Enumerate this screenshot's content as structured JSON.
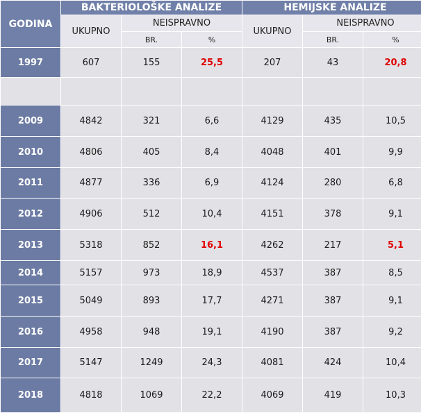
{
  "header": {
    "godina": "GODINA",
    "bakterioloske": "BAKTERIOLOŠKE ANALIZE",
    "hemijske": "HEMIJSKE ANALIZE",
    "ukupno_1": "UKUPNO",
    "neispravno_1": "NEISPRAVNO",
    "br_1": "BR.",
    "pct_1": "%",
    "ukupno_2": "UKUPNO",
    "neispravno_2": "NEISPRAVNO",
    "br_2": "BR.",
    "pct_2": "%"
  },
  "rows": [
    {
      "year": "1997",
      "b_ukupno": "607",
      "b_br": "155",
      "b_pct": "25,5",
      "h_ukupno": "207",
      "h_br": "43",
      "h_pct": "20,8",
      "highlight": true
    },
    {
      "year": "2009",
      "b_ukupno": "4842",
      "b_br": "321",
      "b_pct": "6,6",
      "h_ukupno": "4129",
      "h_br": "435",
      "h_pct": "10,5",
      "highlight": false
    },
    {
      "year": "2010",
      "b_ukupno": "4806",
      "b_br": "405",
      "b_pct": "8,4",
      "h_ukupno": "4048",
      "h_br": "401",
      "h_pct": "9,9",
      "highlight": false
    },
    {
      "year": "2011",
      "b_ukupno": "4877",
      "b_br": "336",
      "b_pct": "6,9",
      "h_ukupno": "4124",
      "h_br": "280",
      "h_pct": "6,8",
      "highlight": false
    },
    {
      "year": "2012",
      "b_ukupno": "4906",
      "b_br": "512",
      "b_pct": "10,4",
      "h_ukupno": "4151",
      "h_br": "378",
      "h_pct": "9,1",
      "highlight": false
    },
    {
      "year": "2013",
      "b_ukupno": "5318",
      "b_br": "852",
      "b_pct": "16,1",
      "h_ukupno": "4262",
      "h_br": "217",
      "h_pct": "5,1",
      "highlight": true
    },
    {
      "year": "2014",
      "b_ukupno": "5157",
      "b_br": "973",
      "b_pct": "18,9",
      "h_ukupno": "4537",
      "h_br": "387",
      "h_pct": "8,5",
      "highlight": false
    },
    {
      "year": "2015",
      "b_ukupno": "5049",
      "b_br": "893",
      "b_pct": "17,7",
      "h_ukupno": "4271",
      "h_br": "387",
      "h_pct": "9,1",
      "highlight": false
    },
    {
      "year": "2016",
      "b_ukupno": "4958",
      "b_br": "948",
      "b_pct": "19,1",
      "h_ukupno": "4190",
      "h_br": "387",
      "h_pct": "9,2",
      "highlight": false
    },
    {
      "year": "2017",
      "b_ukupno": "5147",
      "b_br": "1249",
      "b_pct": "24,3",
      "h_ukupno": "4081",
      "h_br": "424",
      "h_pct": "10,4",
      "highlight": false
    },
    {
      "year": "2018",
      "b_ukupno": "4818",
      "b_br": "1069",
      "b_pct": "22,2",
      "h_ukupno": "4069",
      "h_br": "419",
      "h_pct": "10,3",
      "highlight": false
    }
  ],
  "colors": {
    "header_bg": "#7080a8",
    "year_bg": "#6c7ba3",
    "cell_bg": "#e2e2e6",
    "highlight_text": "#e00000"
  }
}
